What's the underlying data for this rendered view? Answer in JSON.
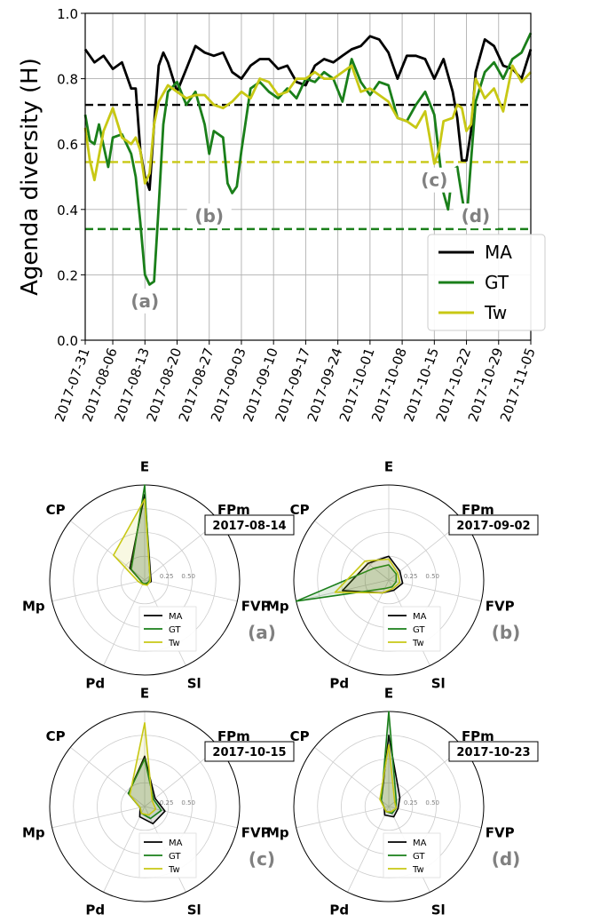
{
  "colors": {
    "MA": "#000000",
    "GT": "#1a7f1a",
    "Tw": "#c8c814",
    "grid": "#b0b0b0",
    "annot": "#808080"
  },
  "chart_data": [
    {
      "type": "line",
      "xlabel": "",
      "ylabel": "Agenda diversity (H)",
      "ylim": [
        0,
        1
      ],
      "yticks": [
        "0.0",
        "0.2",
        "0.4",
        "0.6",
        "0.8",
        "1.0"
      ],
      "xlim": [
        "2017-07-31",
        "2017-11-05"
      ],
      "xticks": [
        "2017-07-31",
        "2017-08-06",
        "2017-08-13",
        "2017-08-20",
        "2017-08-27",
        "2017-09-03",
        "2017-09-10",
        "2017-09-17",
        "2017-09-24",
        "2017-10-01",
        "2017-10-08",
        "2017-10-15",
        "2017-10-22",
        "2017-10-29",
        "2017-11-05"
      ],
      "grid": true,
      "legend_position": "lower-right",
      "series": [
        {
          "name": "MA",
          "color": "#000000",
          "x": [
            "2017-07-31",
            "2017-08-02",
            "2017-08-04",
            "2017-08-06",
            "2017-08-08",
            "2017-08-10",
            "2017-08-11",
            "2017-08-12",
            "2017-08-13",
            "2017-08-14",
            "2017-08-15",
            "2017-08-16",
            "2017-08-17",
            "2017-08-18",
            "2017-08-20",
            "2017-08-22",
            "2017-08-24",
            "2017-08-26",
            "2017-08-28",
            "2017-08-30",
            "2017-09-01",
            "2017-09-03",
            "2017-09-05",
            "2017-09-07",
            "2017-09-09",
            "2017-09-11",
            "2017-09-13",
            "2017-09-15",
            "2017-09-17",
            "2017-09-19",
            "2017-09-21",
            "2017-09-23",
            "2017-09-25",
            "2017-09-27",
            "2017-09-29",
            "2017-10-01",
            "2017-10-03",
            "2017-10-05",
            "2017-10-07",
            "2017-10-09",
            "2017-10-11",
            "2017-10-13",
            "2017-10-15",
            "2017-10-17",
            "2017-10-19",
            "2017-10-20",
            "2017-10-21",
            "2017-10-22",
            "2017-10-23",
            "2017-10-24",
            "2017-10-26",
            "2017-10-28",
            "2017-10-30",
            "2017-11-01",
            "2017-11-03",
            "2017-11-05"
          ],
          "y": [
            0.89,
            0.85,
            0.87,
            0.83,
            0.85,
            0.77,
            0.77,
            0.58,
            0.5,
            0.46,
            0.66,
            0.84,
            0.88,
            0.85,
            0.76,
            0.83,
            0.9,
            0.88,
            0.87,
            0.88,
            0.82,
            0.8,
            0.84,
            0.86,
            0.86,
            0.83,
            0.84,
            0.79,
            0.78,
            0.84,
            0.86,
            0.85,
            0.87,
            0.89,
            0.9,
            0.93,
            0.92,
            0.88,
            0.8,
            0.87,
            0.87,
            0.86,
            0.8,
            0.86,
            0.76,
            0.68,
            0.55,
            0.55,
            0.64,
            0.82,
            0.92,
            0.9,
            0.84,
            0.83,
            0.8,
            0.89
          ]
        },
        {
          "name": "GT",
          "color": "#1a7f1a",
          "x": [
            "2017-07-31",
            "2017-08-01",
            "2017-08-02",
            "2017-08-03",
            "2017-08-05",
            "2017-08-06",
            "2017-08-08",
            "2017-08-10",
            "2017-08-11",
            "2017-08-12",
            "2017-08-13",
            "2017-08-14",
            "2017-08-15",
            "2017-08-16",
            "2017-08-17",
            "2017-08-18",
            "2017-08-20",
            "2017-08-22",
            "2017-08-24",
            "2017-08-26",
            "2017-08-27",
            "2017-08-28",
            "2017-08-30",
            "2017-08-31",
            "2017-09-01",
            "2017-09-02",
            "2017-09-03",
            "2017-09-05",
            "2017-09-07",
            "2017-09-09",
            "2017-09-11",
            "2017-09-13",
            "2017-09-15",
            "2017-09-17",
            "2017-09-19",
            "2017-09-21",
            "2017-09-23",
            "2017-09-25",
            "2017-09-27",
            "2017-09-29",
            "2017-10-01",
            "2017-10-03",
            "2017-10-05",
            "2017-10-07",
            "2017-10-09",
            "2017-10-11",
            "2017-10-13",
            "2017-10-15",
            "2017-10-17",
            "2017-10-18",
            "2017-10-19",
            "2017-10-20",
            "2017-10-21",
            "2017-10-22",
            "2017-10-23",
            "2017-10-24",
            "2017-10-26",
            "2017-10-28",
            "2017-10-30",
            "2017-11-01",
            "2017-11-03",
            "2017-11-05"
          ],
          "y": [
            0.69,
            0.61,
            0.6,
            0.66,
            0.53,
            0.62,
            0.63,
            0.57,
            0.5,
            0.36,
            0.2,
            0.17,
            0.18,
            0.41,
            0.66,
            0.76,
            0.79,
            0.72,
            0.76,
            0.66,
            0.57,
            0.64,
            0.62,
            0.48,
            0.45,
            0.47,
            0.58,
            0.77,
            0.79,
            0.76,
            0.74,
            0.77,
            0.74,
            0.8,
            0.79,
            0.82,
            0.8,
            0.73,
            0.86,
            0.79,
            0.75,
            0.79,
            0.78,
            0.68,
            0.67,
            0.72,
            0.76,
            0.69,
            0.45,
            0.4,
            0.52,
            0.53,
            0.44,
            0.36,
            0.55,
            0.73,
            0.82,
            0.85,
            0.8,
            0.86,
            0.88,
            0.94
          ]
        },
        {
          "name": "Tw",
          "color": "#c8c814",
          "x": [
            "2017-07-31",
            "2017-08-01",
            "2017-08-02",
            "2017-08-04",
            "2017-08-06",
            "2017-08-08",
            "2017-08-10",
            "2017-08-11",
            "2017-08-12",
            "2017-08-13",
            "2017-08-14",
            "2017-08-15",
            "2017-08-16",
            "2017-08-18",
            "2017-08-20",
            "2017-08-22",
            "2017-08-24",
            "2017-08-26",
            "2017-08-28",
            "2017-08-30",
            "2017-09-01",
            "2017-09-03",
            "2017-09-05",
            "2017-09-07",
            "2017-09-09",
            "2017-09-11",
            "2017-09-13",
            "2017-09-15",
            "2017-09-17",
            "2017-09-19",
            "2017-09-21",
            "2017-09-23",
            "2017-09-25",
            "2017-09-27",
            "2017-09-29",
            "2017-10-01",
            "2017-10-03",
            "2017-10-05",
            "2017-10-07",
            "2017-10-09",
            "2017-10-11",
            "2017-10-13",
            "2017-10-15",
            "2017-10-16",
            "2017-10-17",
            "2017-10-19",
            "2017-10-20",
            "2017-10-21",
            "2017-10-22",
            "2017-10-23",
            "2017-10-24",
            "2017-10-26",
            "2017-10-28",
            "2017-10-30",
            "2017-11-01",
            "2017-11-03",
            "2017-11-05"
          ],
          "y": [
            0.65,
            0.55,
            0.49,
            0.64,
            0.71,
            0.62,
            0.6,
            0.62,
            0.58,
            0.48,
            0.51,
            0.66,
            0.73,
            0.78,
            0.76,
            0.74,
            0.75,
            0.75,
            0.72,
            0.71,
            0.73,
            0.76,
            0.74,
            0.8,
            0.79,
            0.75,
            0.76,
            0.8,
            0.8,
            0.82,
            0.8,
            0.8,
            0.82,
            0.84,
            0.76,
            0.77,
            0.75,
            0.73,
            0.68,
            0.67,
            0.65,
            0.7,
            0.54,
            0.58,
            0.67,
            0.68,
            0.72,
            0.71,
            0.64,
            0.66,
            0.8,
            0.74,
            0.77,
            0.7,
            0.84,
            0.79,
            0.82
          ]
        }
      ],
      "reference_lines": [
        {
          "series": "MA",
          "y": 0.72
        },
        {
          "series": "GT",
          "y": 0.34
        },
        {
          "series": "Tw",
          "y": 0.545
        }
      ],
      "annotations": [
        {
          "text": "(a)",
          "x": "2017-08-13",
          "y": 0.12
        },
        {
          "text": "(b)",
          "x": "2017-08-27",
          "y": 0.38
        },
        {
          "text": "(c)",
          "x": "2017-10-15",
          "y": 0.49
        },
        {
          "text": "(d)",
          "x": "2017-10-24",
          "y": 0.38
        }
      ]
    },
    {
      "type": "radar",
      "label": "(a)",
      "date": "2017-08-14",
      "categories": [
        "E",
        "FPm",
        "FVP",
        "Sl",
        "Pd",
        "Mp",
        "CP"
      ],
      "rticks": [
        "0.25",
        "0.50"
      ],
      "rlim": [
        0,
        1
      ],
      "legend_position": "lower-center",
      "series": [
        {
          "name": "MA",
          "values": [
            0.9,
            0.08,
            0.07,
            0.05,
            0.05,
            0.04,
            0.2
          ]
        },
        {
          "name": "GT",
          "values": [
            1.0,
            0.07,
            0.05,
            0.04,
            0.04,
            0.04,
            0.18
          ]
        },
        {
          "name": "Tw",
          "values": [
            0.85,
            0.07,
            0.06,
            0.06,
            0.05,
            0.07,
            0.42
          ]
        }
      ]
    },
    {
      "type": "radar",
      "label": "(b)",
      "date": "2017-09-02",
      "categories": [
        "E",
        "FPm",
        "FVP",
        "Sl",
        "Pd",
        "Mp",
        "CP"
      ],
      "rticks": [
        "0.25",
        "0.50"
      ],
      "rlim": [
        0,
        1
      ],
      "legend_position": "lower-center",
      "series": [
        {
          "name": "MA",
          "values": [
            0.25,
            0.15,
            0.15,
            0.12,
            0.15,
            0.5,
            0.28
          ]
        },
        {
          "name": "GT",
          "values": [
            0.16,
            0.1,
            0.08,
            0.08,
            0.1,
            1.0,
            0.2
          ]
        },
        {
          "name": "Tw",
          "values": [
            0.22,
            0.12,
            0.12,
            0.1,
            0.15,
            0.58,
            0.32
          ]
        }
      ]
    },
    {
      "type": "radar",
      "label": "(c)",
      "date": "2017-10-15",
      "categories": [
        "E",
        "FPm",
        "FVP",
        "Sl",
        "Pd",
        "Mp",
        "CP"
      ],
      "rticks": [
        "0.25",
        "0.50"
      ],
      "rlim": [
        0,
        1
      ],
      "legend_position": "lower-center",
      "series": [
        {
          "name": "MA",
          "values": [
            0.53,
            0.14,
            0.22,
            0.2,
            0.12,
            0.05,
            0.22
          ]
        },
        {
          "name": "GT",
          "values": [
            0.5,
            0.12,
            0.18,
            0.14,
            0.08,
            0.05,
            0.22
          ]
        },
        {
          "name": "Tw",
          "values": [
            0.88,
            0.1,
            0.12,
            0.1,
            0.08,
            0.05,
            0.2
          ]
        }
      ]
    },
    {
      "type": "radar",
      "label": "(d)",
      "date": "2017-10-23",
      "categories": [
        "E",
        "FPm",
        "FVP",
        "Sl",
        "Pd",
        "Mp",
        "CP"
      ],
      "rticks": [
        "0.25",
        "0.50"
      ],
      "rlim": [
        0,
        1
      ],
      "legend_position": "lower-center",
      "series": [
        {
          "name": "MA",
          "values": [
            0.75,
            0.15,
            0.1,
            0.12,
            0.1,
            0.05,
            0.1
          ]
        },
        {
          "name": "GT",
          "values": [
            1.0,
            0.1,
            0.08,
            0.08,
            0.06,
            0.05,
            0.1
          ]
        },
        {
          "name": "Tw",
          "values": [
            0.65,
            0.08,
            0.08,
            0.06,
            0.06,
            0.05,
            0.12
          ]
        }
      ]
    }
  ]
}
